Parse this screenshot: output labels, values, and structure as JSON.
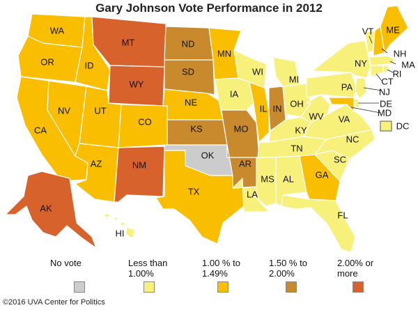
{
  "title": "Gary Johnson Vote Performance in 2012",
  "colors": {
    "no_vote": "#cccccc",
    "less_1": "#f7f07a",
    "1_to_149": "#f9be00",
    "150_to_2": "#c98a2e",
    "2_plus": "#d8622c"
  },
  "legend": [
    {
      "label": "No vote",
      "color_key": "no_vote"
    },
    {
      "label": "Less than 1.00%",
      "color_key": "less_1"
    },
    {
      "label": "1.00 % to 1.49%",
      "color_key": "1_to_149"
    },
    {
      "label": "1.50 % to 2.00%",
      "color_key": "150_to_2"
    },
    {
      "label": "2.00% or more",
      "color_key": "2_plus"
    }
  ],
  "states": [
    {
      "abbr": "WA",
      "category": "1_to_149"
    },
    {
      "abbr": "OR",
      "category": "1_to_149"
    },
    {
      "abbr": "CA",
      "category": "1_to_149"
    },
    {
      "abbr": "NV",
      "category": "1_to_149"
    },
    {
      "abbr": "ID",
      "category": "1_to_149"
    },
    {
      "abbr": "MT",
      "category": "2_plus"
    },
    {
      "abbr": "WY",
      "category": "2_plus"
    },
    {
      "abbr": "UT",
      "category": "1_to_149"
    },
    {
      "abbr": "AZ",
      "category": "1_to_149"
    },
    {
      "abbr": "CO",
      "category": "1_to_149"
    },
    {
      "abbr": "NM",
      "category": "2_plus"
    },
    {
      "abbr": "ND",
      "category": "150_to_2"
    },
    {
      "abbr": "SD",
      "category": "150_to_2"
    },
    {
      "abbr": "NE",
      "category": "1_to_149"
    },
    {
      "abbr": "KS",
      "category": "150_to_2"
    },
    {
      "abbr": "OK",
      "category": "no_vote"
    },
    {
      "abbr": "TX",
      "category": "1_to_149"
    },
    {
      "abbr": "MN",
      "category": "1_to_149"
    },
    {
      "abbr": "IA",
      "category": "less_1"
    },
    {
      "abbr": "MO",
      "category": "150_to_2"
    },
    {
      "abbr": "AR",
      "category": "150_to_2"
    },
    {
      "abbr": "LA",
      "category": "less_1"
    },
    {
      "abbr": "WI",
      "category": "less_1"
    },
    {
      "abbr": "IL",
      "category": "1_to_149"
    },
    {
      "abbr": "IN",
      "category": "150_to_2"
    },
    {
      "abbr": "MI",
      "category": "less_1"
    },
    {
      "abbr": "OH",
      "category": "less_1"
    },
    {
      "abbr": "KY",
      "category": "less_1"
    },
    {
      "abbr": "TN",
      "category": "less_1"
    },
    {
      "abbr": "MS",
      "category": "less_1"
    },
    {
      "abbr": "AL",
      "category": "less_1"
    },
    {
      "abbr": "GA",
      "category": "1_to_149"
    },
    {
      "abbr": "FL",
      "category": "less_1"
    },
    {
      "abbr": "SC",
      "category": "less_1"
    },
    {
      "abbr": "NC",
      "category": "less_1"
    },
    {
      "abbr": "VA",
      "category": "less_1"
    },
    {
      "abbr": "WV",
      "category": "less_1"
    },
    {
      "abbr": "PA",
      "category": "less_1"
    },
    {
      "abbr": "NY",
      "category": "less_1"
    },
    {
      "abbr": "VT",
      "category": "less_1"
    },
    {
      "abbr": "NH",
      "category": "1_to_149"
    },
    {
      "abbr": "ME",
      "category": "1_to_149"
    },
    {
      "abbr": "MA",
      "category": "less_1"
    },
    {
      "abbr": "RI",
      "category": "less_1"
    },
    {
      "abbr": "CT",
      "category": "less_1"
    },
    {
      "abbr": "NJ",
      "category": "less_1"
    },
    {
      "abbr": "DE",
      "category": "less_1"
    },
    {
      "abbr": "MD",
      "category": "1_to_149"
    },
    {
      "abbr": "DC",
      "category": "less_1"
    },
    {
      "abbr": "AK",
      "category": "2_plus"
    },
    {
      "abbr": "HI",
      "category": "less_1"
    }
  ],
  "credit": "©2016 UVA Center for Politics"
}
